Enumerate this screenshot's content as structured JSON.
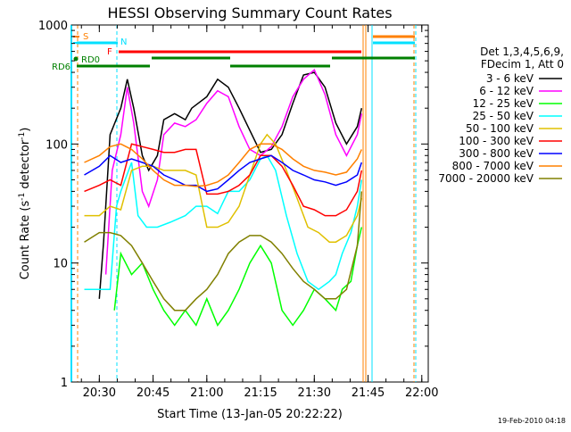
{
  "chart_data": {
    "type": "line",
    "title": "HESSI Observing Summary Count Rates",
    "xlabel": "Start Time (13-Jan-05 20:22:22)",
    "ylabel": "Count Rate (s-1 detector-1)",
    "ylabel_parts": {
      "main": "Count Rate (s",
      "sup1": "-1",
      "mid": " detector",
      "sup2": "-1",
      "end": ")"
    },
    "yscale": "log",
    "ylim": [
      1,
      1000
    ],
    "xlim_minutes": [
      20.37,
      22.03
    ],
    "x_ticks": [
      {
        "v": 20.5,
        "label": "20:30"
      },
      {
        "v": 20.75,
        "label": "20:45"
      },
      {
        "v": 21.0,
        "label": "21:00"
      },
      {
        "v": 21.25,
        "label": "21:15"
      },
      {
        "v": 21.5,
        "label": "21:30"
      },
      {
        "v": 21.75,
        "label": "21:45"
      },
      {
        "v": 22.0,
        "label": "22:00"
      }
    ],
    "y_ticks": [
      {
        "v": 1,
        "label": "1"
      },
      {
        "v": 10,
        "label": "10"
      },
      {
        "v": 100,
        "label": "100"
      },
      {
        "v": 1000,
        "label": "1000"
      }
    ],
    "legend_title": [
      "Det 1,3,4,5,6,9,",
      "FDecim 1, Att 0"
    ],
    "legend_placement": "right",
    "footer_date": "19-Feb-2010 04:18",
    "flags": [
      {
        "label": "S",
        "color": "#ff8000"
      },
      {
        "label": "N",
        "color": "#00e0ff"
      },
      {
        "label": "F",
        "color": "#ff0000"
      },
      {
        "label": "RD0",
        "color": "#008000"
      },
      {
        "label": "RD6",
        "color": "#008000"
      }
    ],
    "series": [
      {
        "name": "3 - 6 keV",
        "color": "#000000",
        "points": [
          [
            20.5,
            5
          ],
          [
            20.52,
            15
          ],
          [
            20.55,
            120
          ],
          [
            20.6,
            200
          ],
          [
            20.63,
            350
          ],
          [
            20.66,
            200
          ],
          [
            20.7,
            80
          ],
          [
            20.73,
            60
          ],
          [
            20.77,
            80
          ],
          [
            20.8,
            160
          ],
          [
            20.85,
            180
          ],
          [
            20.9,
            160
          ],
          [
            20.93,
            200
          ],
          [
            21.0,
            250
          ],
          [
            21.05,
            350
          ],
          [
            21.1,
            300
          ],
          [
            21.15,
            200
          ],
          [
            21.2,
            130
          ],
          [
            21.25,
            85
          ],
          [
            21.3,
            90
          ],
          [
            21.35,
            120
          ],
          [
            21.4,
            220
          ],
          [
            21.45,
            380
          ],
          [
            21.5,
            400
          ],
          [
            21.55,
            300
          ],
          [
            21.6,
            150
          ],
          [
            21.65,
            100
          ],
          [
            21.7,
            140
          ],
          [
            21.72,
            200
          ]
        ]
      },
      {
        "name": "6 - 12 keV",
        "color": "#ff00ff",
        "points": [
          [
            20.53,
            8
          ],
          [
            20.56,
            60
          ],
          [
            20.6,
            120
          ],
          [
            20.63,
            300
          ],
          [
            20.66,
            150
          ],
          [
            20.7,
            40
          ],
          [
            20.73,
            30
          ],
          [
            20.77,
            50
          ],
          [
            20.8,
            120
          ],
          [
            20.85,
            150
          ],
          [
            20.9,
            140
          ],
          [
            20.95,
            160
          ],
          [
            21.0,
            220
          ],
          [
            21.05,
            280
          ],
          [
            21.1,
            250
          ],
          [
            21.15,
            140
          ],
          [
            21.2,
            90
          ],
          [
            21.25,
            80
          ],
          [
            21.3,
            95
          ],
          [
            21.35,
            140
          ],
          [
            21.4,
            250
          ],
          [
            21.45,
            350
          ],
          [
            21.5,
            420
          ],
          [
            21.55,
            260
          ],
          [
            21.6,
            120
          ],
          [
            21.65,
            80
          ],
          [
            21.7,
            120
          ],
          [
            21.72,
            180
          ]
        ]
      },
      {
        "name": "12 - 25 keV",
        "color": "#00ff00",
        "points": [
          [
            20.57,
            4
          ],
          [
            20.6,
            12
          ],
          [
            20.65,
            8
          ],
          [
            20.7,
            10
          ],
          [
            20.75,
            6
          ],
          [
            20.8,
            4
          ],
          [
            20.85,
            3
          ],
          [
            20.9,
            4
          ],
          [
            20.95,
            3
          ],
          [
            21.0,
            5
          ],
          [
            21.05,
            3
          ],
          [
            21.1,
            4
          ],
          [
            21.15,
            6
          ],
          [
            21.2,
            10
          ],
          [
            21.25,
            14
          ],
          [
            21.3,
            10
          ],
          [
            21.35,
            4
          ],
          [
            21.4,
            3
          ],
          [
            21.45,
            4
          ],
          [
            21.5,
            6
          ],
          [
            21.55,
            5
          ],
          [
            21.6,
            4
          ],
          [
            21.63,
            6
          ],
          [
            21.67,
            7
          ],
          [
            21.7,
            14
          ],
          [
            21.72,
            20
          ]
        ]
      },
      {
        "name": "25 - 50 keV",
        "color": "#00ffff",
        "points": [
          [
            20.43,
            6
          ],
          [
            20.5,
            6
          ],
          [
            20.55,
            6
          ],
          [
            20.58,
            30
          ],
          [
            20.6,
            40
          ],
          [
            20.65,
            70
          ],
          [
            20.68,
            25
          ],
          [
            20.72,
            20
          ],
          [
            20.77,
            20
          ],
          [
            20.83,
            22
          ],
          [
            20.9,
            25
          ],
          [
            20.95,
            30
          ],
          [
            21.0,
            30
          ],
          [
            21.05,
            26
          ],
          [
            21.1,
            40
          ],
          [
            21.15,
            40
          ],
          [
            21.2,
            50
          ],
          [
            21.25,
            75
          ],
          [
            21.28,
            80
          ],
          [
            21.32,
            60
          ],
          [
            21.37,
            25
          ],
          [
            21.42,
            12
          ],
          [
            21.47,
            7
          ],
          [
            21.52,
            6
          ],
          [
            21.57,
            7
          ],
          [
            21.6,
            8
          ],
          [
            21.63,
            12
          ],
          [
            21.67,
            18
          ],
          [
            21.7,
            30
          ],
          [
            21.72,
            50
          ]
        ]
      },
      {
        "name": "50 - 100 keV",
        "color": "#e0c000",
        "points": [
          [
            20.43,
            25
          ],
          [
            20.5,
            25
          ],
          [
            20.55,
            30
          ],
          [
            20.6,
            28
          ],
          [
            20.65,
            60
          ],
          [
            20.7,
            65
          ],
          [
            20.75,
            65
          ],
          [
            20.8,
            60
          ],
          [
            20.85,
            60
          ],
          [
            20.9,
            60
          ],
          [
            20.95,
            55
          ],
          [
            21.0,
            20
          ],
          [
            21.05,
            20
          ],
          [
            21.1,
            22
          ],
          [
            21.15,
            30
          ],
          [
            21.2,
            55
          ],
          [
            21.25,
            100
          ],
          [
            21.28,
            120
          ],
          [
            21.32,
            100
          ],
          [
            21.37,
            60
          ],
          [
            21.42,
            35
          ],
          [
            21.47,
            20
          ],
          [
            21.52,
            18
          ],
          [
            21.57,
            15
          ],
          [
            21.6,
            15
          ],
          [
            21.65,
            17
          ],
          [
            21.7,
            25
          ],
          [
            21.72,
            35
          ]
        ]
      },
      {
        "name": "100 - 300 keV",
        "color": "#ff0000",
        "points": [
          [
            20.43,
            40
          ],
          [
            20.5,
            45
          ],
          [
            20.55,
            50
          ],
          [
            20.6,
            45
          ],
          [
            20.65,
            100
          ],
          [
            20.7,
            95
          ],
          [
            20.75,
            90
          ],
          [
            20.8,
            85
          ],
          [
            20.85,
            85
          ],
          [
            20.9,
            90
          ],
          [
            20.95,
            90
          ],
          [
            21.0,
            38
          ],
          [
            21.05,
            38
          ],
          [
            21.1,
            40
          ],
          [
            21.15,
            45
          ],
          [
            21.2,
            55
          ],
          [
            21.25,
            80
          ],
          [
            21.3,
            80
          ],
          [
            21.35,
            65
          ],
          [
            21.4,
            45
          ],
          [
            21.45,
            30
          ],
          [
            21.5,
            28
          ],
          [
            21.55,
            25
          ],
          [
            21.6,
            25
          ],
          [
            21.65,
            28
          ],
          [
            21.7,
            40
          ],
          [
            21.72,
            60
          ]
        ]
      },
      {
        "name": "300 - 800 keV",
        "color": "#0000ff",
        "points": [
          [
            20.43,
            55
          ],
          [
            20.5,
            65
          ],
          [
            20.55,
            80
          ],
          [
            20.6,
            70
          ],
          [
            20.65,
            75
          ],
          [
            20.7,
            70
          ],
          [
            20.75,
            65
          ],
          [
            20.8,
            55
          ],
          [
            20.85,
            50
          ],
          [
            20.9,
            45
          ],
          [
            20.95,
            45
          ],
          [
            21.0,
            40
          ],
          [
            21.05,
            42
          ],
          [
            21.1,
            50
          ],
          [
            21.15,
            60
          ],
          [
            21.2,
            70
          ],
          [
            21.25,
            75
          ],
          [
            21.3,
            80
          ],
          [
            21.35,
            70
          ],
          [
            21.4,
            60
          ],
          [
            21.45,
            55
          ],
          [
            21.5,
            50
          ],
          [
            21.55,
            48
          ],
          [
            21.6,
            45
          ],
          [
            21.65,
            48
          ],
          [
            21.7,
            55
          ],
          [
            21.72,
            70
          ]
        ]
      },
      {
        "name": "800 - 7000 keV",
        "color": "#ff8000",
        "points": [
          [
            20.43,
            70
          ],
          [
            20.5,
            80
          ],
          [
            20.55,
            95
          ],
          [
            20.6,
            100
          ],
          [
            20.65,
            90
          ],
          [
            20.7,
            75
          ],
          [
            20.75,
            60
          ],
          [
            20.8,
            50
          ],
          [
            20.85,
            45
          ],
          [
            20.9,
            45
          ],
          [
            20.95,
            44
          ],
          [
            21.0,
            45
          ],
          [
            21.05,
            48
          ],
          [
            21.1,
            55
          ],
          [
            21.15,
            70
          ],
          [
            21.2,
            90
          ],
          [
            21.25,
            100
          ],
          [
            21.3,
            100
          ],
          [
            21.35,
            90
          ],
          [
            21.4,
            75
          ],
          [
            21.45,
            65
          ],
          [
            21.5,
            60
          ],
          [
            21.55,
            58
          ],
          [
            21.6,
            55
          ],
          [
            21.65,
            58
          ],
          [
            21.7,
            75
          ],
          [
            21.72,
            90
          ]
        ]
      },
      {
        "name": "7000 - 20000 keV",
        "color": "#808000",
        "points": [
          [
            20.43,
            15
          ],
          [
            20.5,
            18
          ],
          [
            20.55,
            18
          ],
          [
            20.6,
            17
          ],
          [
            20.65,
            14
          ],
          [
            20.7,
            10
          ],
          [
            20.75,
            7
          ],
          [
            20.8,
            5
          ],
          [
            20.85,
            4
          ],
          [
            20.9,
            4
          ],
          [
            20.95,
            5
          ],
          [
            21.0,
            6
          ],
          [
            21.05,
            8
          ],
          [
            21.1,
            12
          ],
          [
            21.15,
            15
          ],
          [
            21.2,
            17
          ],
          [
            21.25,
            17
          ],
          [
            21.3,
            15
          ],
          [
            21.35,
            12
          ],
          [
            21.4,
            9
          ],
          [
            21.45,
            7
          ],
          [
            21.5,
            6
          ],
          [
            21.55,
            5
          ],
          [
            21.6,
            5
          ],
          [
            21.65,
            6
          ],
          [
            21.7,
            14
          ],
          [
            21.72,
            40
          ]
        ]
      }
    ]
  }
}
